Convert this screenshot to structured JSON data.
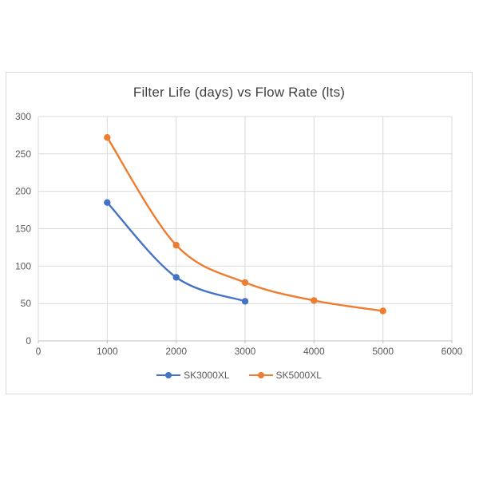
{
  "chart_data": {
    "type": "line",
    "title": "Filter Life (days) vs Flow Rate (lts)",
    "xlabel": "",
    "ylabel": "",
    "xlim": [
      0,
      6000
    ],
    "ylim": [
      0,
      300
    ],
    "x_ticks": [
      0,
      1000,
      2000,
      3000,
      4000,
      5000,
      6000
    ],
    "y_ticks": [
      0,
      50,
      100,
      150,
      200,
      250,
      300
    ],
    "grid": true,
    "smooth_lines": true,
    "legend_position": "bottom-center",
    "series": [
      {
        "name": "SK3000XL",
        "color": "#4472C4",
        "x": [
          1000,
          2000,
          3000
        ],
        "y": [
          185,
          85,
          53
        ]
      },
      {
        "name": "SK5000XL",
        "color": "#ED7D31",
        "x": [
          1000,
          2000,
          3000,
          4000,
          5000
        ],
        "y": [
          272,
          128,
          78,
          54,
          40
        ]
      }
    ],
    "colors": {
      "gridline": "#d9d9d9",
      "axis_line": "#bfbfbf",
      "tick_label": "#595959",
      "title": "#404040",
      "chart_border": "#d9d9d9",
      "background": "#ffffff"
    }
  }
}
